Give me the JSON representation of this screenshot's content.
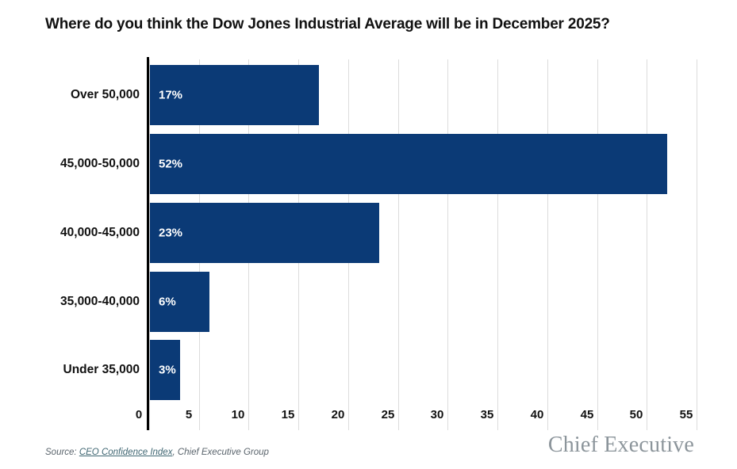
{
  "title": "Where do you think the Dow Jones Industrial Average will be in December 2025?",
  "chart_data": {
    "type": "bar",
    "orientation": "horizontal",
    "title": "Where do you think the Dow Jones Industrial Average will be in December 2025?",
    "categories": [
      "Over 50,000",
      "45,000-50,000",
      "40,000-45,000",
      "35,000-40,000",
      "Under 35,000"
    ],
    "values": [
      17,
      52,
      23,
      6,
      3
    ],
    "value_labels": [
      "17%",
      "52%",
      "23%",
      "6%",
      "3%"
    ],
    "xlabel": "",
    "ylabel": "",
    "x_ticks": [
      0,
      5,
      10,
      15,
      20,
      25,
      30,
      35,
      40,
      45,
      50,
      55
    ],
    "xlim": [
      0,
      56.8
    ],
    "grid": "vertical-gridlines-on",
    "legend": "none",
    "bar_color": "#0b3a76",
    "value_label_color": "#ffffff",
    "gridline_color": "#dcdcdc",
    "axis_line_color": "#000000"
  },
  "footer": {
    "source_prefix": "Source: ",
    "source_link": "CEO Confidence Index",
    "source_suffix": ", Chief Executive Group",
    "logo_text": "Chief Executive"
  }
}
